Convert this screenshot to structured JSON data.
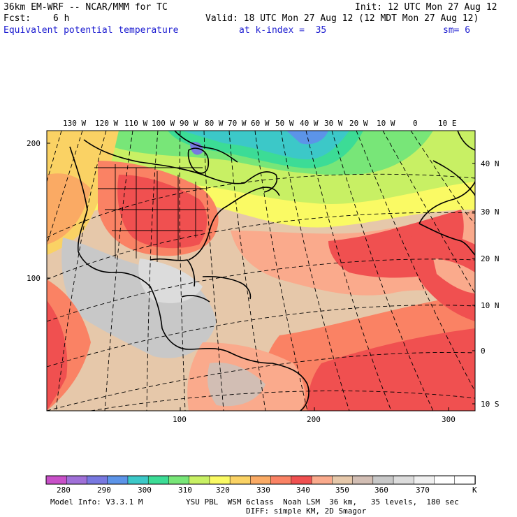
{
  "header": {
    "model_title": "36km EM-WRF -- NCAR/MMM for TC",
    "init": "Init: 12 UTC Mon 27 Aug 12",
    "fcst_label": "Fcst:",
    "fcst_value": "6 h",
    "valid": "Valid: 18 UTC Mon 27 Aug 12 (12 MDT Mon 27 Aug 12)",
    "field": "Equivalent potential temperature",
    "level": "at k-index =  35",
    "smoothing": "sm= 6"
  },
  "axes": {
    "top_lon_labels": [
      "130 W",
      "120 W",
      "110 W",
      "100 W",
      "90 W",
      "80 W",
      "70 W",
      "60 W",
      "50 W",
      "40 W",
      "30 W",
      "20 W",
      "10 W",
      "0",
      "10 E"
    ],
    "right_lat_labels": [
      "40 N",
      "30 N",
      "20 N",
      "10 N",
      "0",
      "10 S"
    ],
    "left_grid_labels": [
      "200",
      "100"
    ],
    "bottom_grid_labels": [
      "100",
      "200",
      "300"
    ]
  },
  "colorbar": {
    "unit": "K",
    "labels": [
      "280",
      "290",
      "300",
      "310",
      "320",
      "330",
      "340",
      "350",
      "360",
      "370"
    ],
    "colors": [
      "#c850c8",
      "#a070d8",
      "#7878e0",
      "#5c94e8",
      "#3cc8c8",
      "#3cdc96",
      "#78e678",
      "#c8f064",
      "#fafa64",
      "#fad264",
      "#faaa64",
      "#fa8264",
      "#f05050",
      "#faaa8c",
      "#e6c8aa",
      "#d2beb4",
      "#c8c8c8",
      "#dcdcdc",
      "#f0f0f0",
      "#ffffff",
      "#ffffff"
    ]
  },
  "footer": {
    "model_info": "Model Info: V3.3.1 M",
    "physics": "YSU PBL  WSM 6class  Noah LSM  36 km,   35 levels,  180 sec",
    "diffusion": "DIFF: simple KM, 2D Smagor"
  }
}
